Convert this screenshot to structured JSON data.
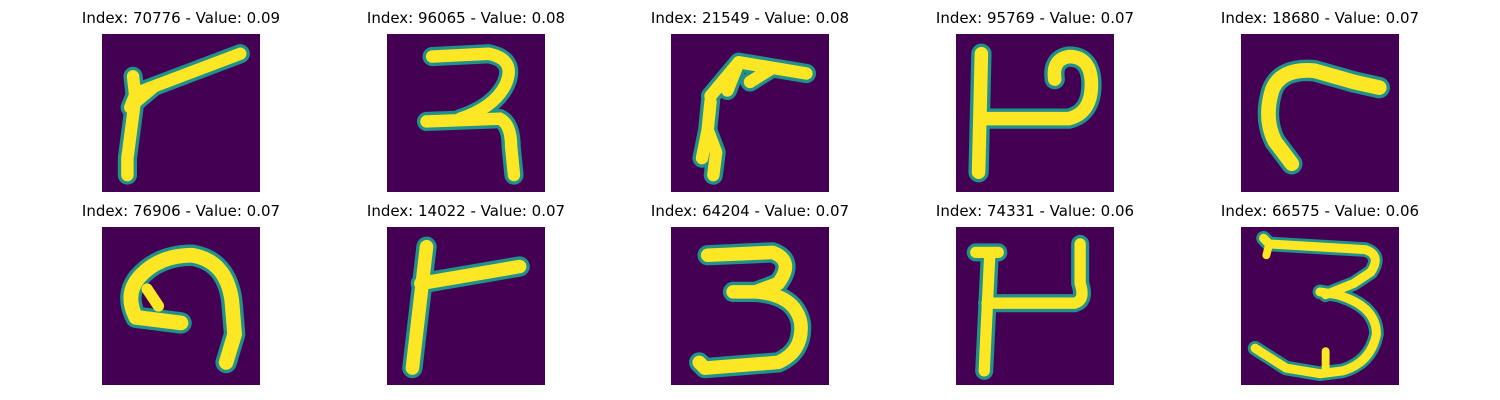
{
  "figure": {
    "background_color": "#440154",
    "ink_color": "#fde725",
    "edge_color": "#21918c",
    "panels": [
      {
        "title": "Index: 70776 - Value: 0.09",
        "index": 70776,
        "value": 0.09,
        "digit_shape": "seven-like-stroke"
      },
      {
        "title": "Index: 96065 - Value: 0.08",
        "index": 96065,
        "value": 0.08,
        "digit_shape": "two-like-stroke"
      },
      {
        "title": "Index: 21549 - Value: 0.08",
        "index": 21549,
        "value": 0.08,
        "digit_shape": "hook-stroke"
      },
      {
        "title": "Index: 95769 - Value: 0.07",
        "index": 95769,
        "value": 0.07,
        "digit_shape": "p-like-stroke"
      },
      {
        "title": "Index: 18680 - Value: 0.07",
        "index": 18680,
        "value": 0.07,
        "digit_shape": "c-like-stroke"
      },
      {
        "title": "Index: 76906 - Value: 0.07",
        "index": 76906,
        "value": 0.07,
        "digit_shape": "nine-like-stroke"
      },
      {
        "title": "Index: 14022 - Value: 0.07",
        "index": 14022,
        "value": 0.07,
        "digit_shape": "r-like-stroke"
      },
      {
        "title": "Index: 64204 - Value: 0.07",
        "index": 64204,
        "value": 0.07,
        "digit_shape": "three-stroke"
      },
      {
        "title": "Index: 74331 - Value: 0.06",
        "index": 74331,
        "value": 0.06,
        "digit_shape": "h-like-stroke"
      },
      {
        "title": "Index: 66575 - Value: 0.06",
        "index": 66575,
        "value": 0.06,
        "digit_shape": "three-stroke"
      }
    ]
  }
}
